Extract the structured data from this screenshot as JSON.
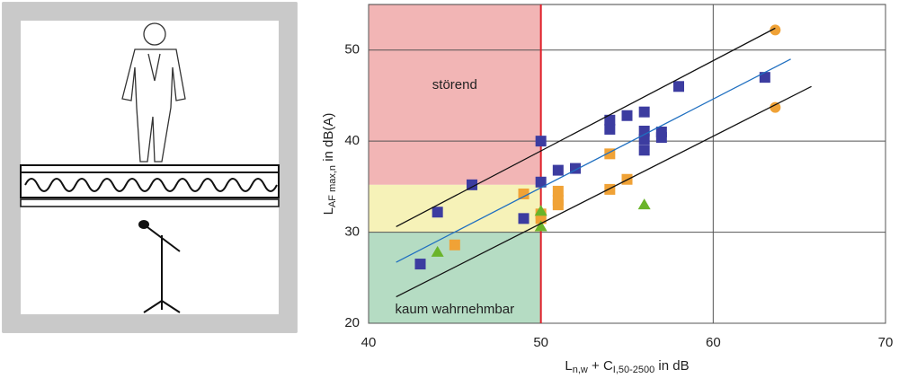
{
  "chart_data": {
    "type": "scatter",
    "x_label": {
      "main": "L",
      "sub": "n,w",
      "mid": " + C",
      "sub2": "I,50-2500",
      "rest": " in dB"
    },
    "y_label": {
      "main": "L",
      "sub": "AF max,n",
      "rest": " in dB(A)"
    },
    "xlim": [
      40,
      70
    ],
    "ylim": [
      20,
      55
    ],
    "xticks": [
      40,
      50,
      60,
      70
    ],
    "yticks": [
      20,
      30,
      40,
      50
    ],
    "grid": true,
    "threshold_x": 50,
    "threshold_color": "#e0202a",
    "zones": [
      {
        "label": "störend",
        "x": [
          40,
          50
        ],
        "y": [
          35.2,
          55
        ],
        "color": "#f2b5b5"
      },
      {
        "x": [
          40,
          50
        ],
        "y": [
          30,
          35.2
        ],
        "color": "#f6f2b8"
      },
      {
        "label": "kaum wahrnehmbar",
        "x": [
          40,
          50
        ],
        "y": [
          20,
          30
        ],
        "color": "#b5dcc3"
      }
    ],
    "series": [
      {
        "marker": "square",
        "color": "#3c3ca0",
        "x": [
          43,
          44,
          46,
          49,
          50,
          50,
          51,
          52,
          54,
          54,
          55,
          56,
          56,
          56,
          56,
          57,
          57,
          58,
          63
        ],
        "y": [
          26.5,
          32.2,
          35.2,
          31.5,
          40,
          35.5,
          36.8,
          37,
          42.3,
          41.3,
          42.8,
          43.2,
          41.1,
          40.2,
          39,
          41,
          40.4,
          46,
          47
        ]
      },
      {
        "marker": "square",
        "color": "#f0a236",
        "x": [
          45,
          49,
          50,
          50,
          51,
          51,
          51,
          54,
          54,
          55
        ],
        "y": [
          28.6,
          34.2,
          31.5,
          32,
          34.5,
          33.5,
          33,
          38.6,
          34.7,
          35.8
        ]
      },
      {
        "marker": "circle",
        "color": "#f0a236",
        "x": [
          63.6,
          63.6
        ],
        "y": [
          52.2,
          43.7
        ]
      },
      {
        "marker": "triangle",
        "color": "#6ab42a",
        "x": [
          44,
          50,
          50,
          56
        ],
        "y": [
          27.8,
          32.3,
          30.6,
          33
        ]
      },
      {
        "marker": "line",
        "color": "#1f6fc0",
        "x": [
          41.6,
          64.5
        ],
        "y": [
          26.7,
          49
        ]
      },
      {
        "marker": "line",
        "color": "#111111",
        "x": [
          41.6,
          63.6
        ],
        "y": [
          30.6,
          52.4
        ]
      },
      {
        "marker": "line",
        "color": "#111111",
        "x": [
          41.6,
          65.7
        ],
        "y": [
          22.9,
          46
        ]
      }
    ]
  }
}
